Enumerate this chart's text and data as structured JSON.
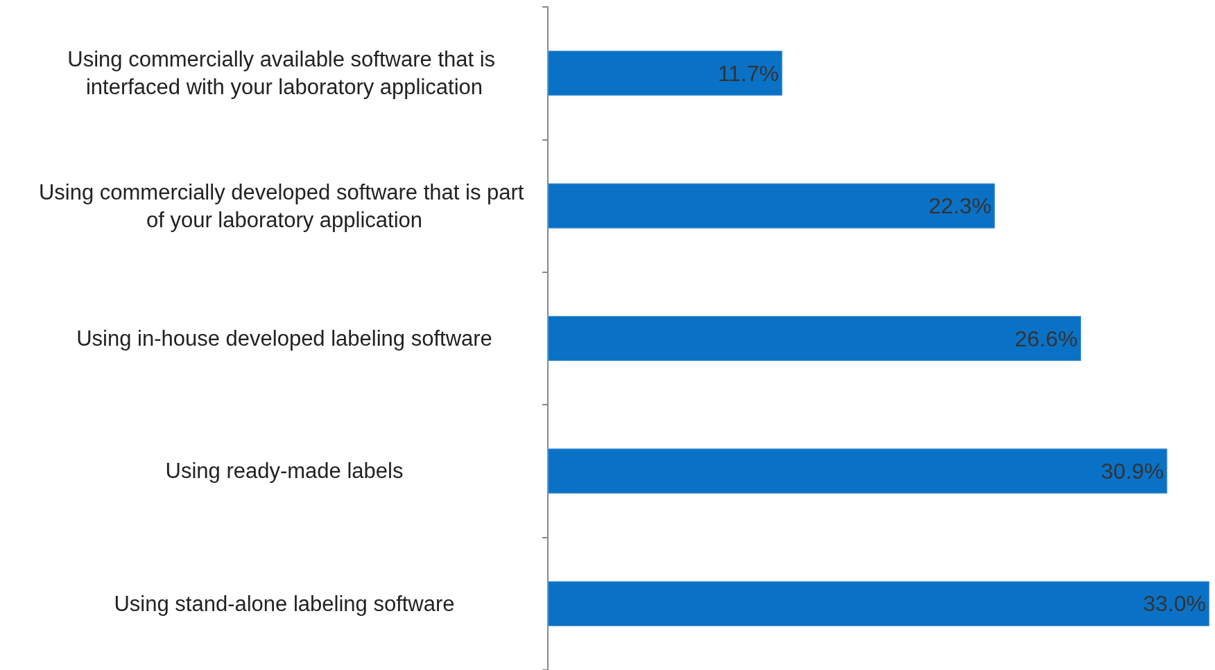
{
  "chart_data": {
    "type": "bar",
    "orientation": "horizontal",
    "categories": [
      "Using commercially available software that is interfaced with your laboratory application",
      "Using commercially developed software that is part of your laboratory application",
      "Using in-house developed labeling software",
      "Using ready-made labels",
      "Using stand-alone labeling software"
    ],
    "values": [
      11.7,
      22.3,
      26.6,
      30.9,
      33.0
    ],
    "value_labels": [
      "11.7%",
      "22.3%",
      "26.6%",
      "30.9%",
      "33.0%"
    ],
    "color": "#0a72c6"
  }
}
